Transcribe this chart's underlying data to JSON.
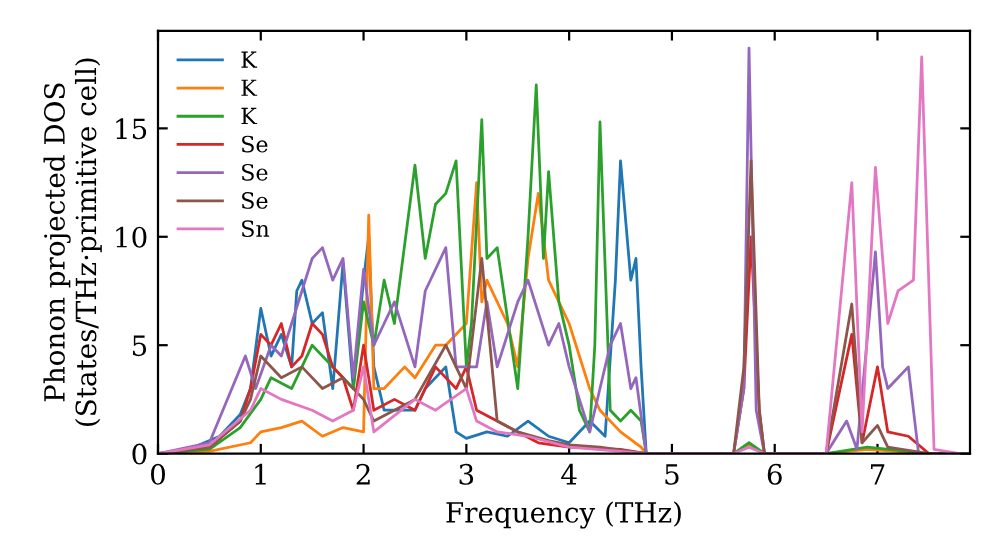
{
  "chart_data": {
    "type": "line",
    "xlabel": "Frequency (THz)",
    "ylabel": "Phonon projected DOS\n(States/THz·primitive cell)",
    "xlim": [
      0,
      7.9
    ],
    "ylim": [
      0,
      19.5
    ],
    "xticks": [
      0,
      1,
      2,
      3,
      4,
      5,
      6,
      7
    ],
    "yticks": [
      0,
      5,
      10,
      15
    ],
    "grid": false,
    "legend": "top left",
    "marker": "none",
    "line_style": "solid",
    "series": [
      {
        "name": "K",
        "color": "#1f77b4",
        "x": [
          0,
          0.3,
          0.6,
          0.8,
          0.9,
          1.0,
          1.1,
          1.2,
          1.3,
          1.35,
          1.4,
          1.5,
          1.6,
          1.7,
          1.8,
          1.9,
          2.0,
          2.05,
          2.1,
          2.2,
          2.3,
          2.5,
          2.6,
          2.8,
          2.9,
          3.0,
          3.2,
          3.4,
          3.6,
          3.8,
          4.0,
          4.2,
          4.35,
          4.45,
          4.5,
          4.6,
          4.65,
          4.7,
          4.75,
          5.6
        ],
        "values": [
          0,
          0.2,
          0.8,
          1.8,
          3,
          6.7,
          4.5,
          5.5,
          4,
          7.5,
          8,
          6,
          6.5,
          3,
          8.8,
          3,
          8,
          10,
          4,
          2,
          2,
          2,
          3,
          4,
          1,
          0.7,
          1,
          0.8,
          1.5,
          0.8,
          0.5,
          1.5,
          0.8,
          8,
          13.5,
          8,
          9,
          4,
          0,
          0
        ]
      },
      {
        "name": "K",
        "color": "#ff7f0e",
        "x": [
          0,
          0.5,
          0.9,
          1.0,
          1.2,
          1.4,
          1.6,
          1.8,
          2.0,
          2.05,
          2.1,
          2.2,
          2.4,
          2.5,
          2.7,
          2.8,
          3.0,
          3.1,
          3.15,
          3.2,
          3.4,
          3.5,
          3.6,
          3.7,
          3.8,
          3.9,
          4.0,
          4.2,
          4.3,
          4.5,
          4.7,
          4.75,
          5.6,
          5.75,
          5.9,
          6.5,
          6.9,
          7.5,
          7.8
        ],
        "values": [
          0,
          0.1,
          0.5,
          1,
          1.2,
          1.5,
          0.8,
          1.2,
          1,
          11,
          3,
          3,
          4,
          3.5,
          5,
          5,
          6,
          12.5,
          7,
          8,
          6,
          4,
          9,
          12,
          8,
          7,
          6,
          3,
          2,
          1,
          0.3,
          0,
          0,
          0.4,
          0,
          0,
          0.2,
          0,
          0
        ]
      },
      {
        "name": "K",
        "color": "#2ca02c",
        "x": [
          0,
          0.5,
          0.8,
          1.0,
          1.1,
          1.3,
          1.5,
          1.7,
          1.9,
          2.0,
          2.1,
          2.2,
          2.3,
          2.5,
          2.6,
          2.7,
          2.8,
          2.9,
          3.0,
          3.05,
          3.15,
          3.2,
          3.3,
          3.5,
          3.6,
          3.68,
          3.75,
          3.8,
          3.9,
          4.0,
          4.1,
          4.2,
          4.25,
          4.3,
          4.4,
          4.5,
          4.6,
          4.7,
          4.75,
          5.6,
          5.75,
          5.9,
          6.5,
          6.9,
          7.5,
          7.8
        ],
        "values": [
          0,
          0.2,
          1.2,
          2.5,
          3.5,
          3,
          5,
          4,
          3,
          7,
          5,
          8,
          6,
          13.3,
          9,
          11.5,
          12,
          13.5,
          4,
          6,
          15.4,
          9,
          9.5,
          3,
          10,
          17,
          9,
          13,
          7,
          5,
          2,
          1,
          5,
          15.3,
          2,
          1.5,
          2,
          1.5,
          0,
          0,
          0.5,
          0,
          0,
          0.3,
          0,
          0
        ]
      },
      {
        "name": "Se",
        "color": "#d62728",
        "x": [
          0,
          0.5,
          0.8,
          0.9,
          1.0,
          1.1,
          1.2,
          1.3,
          1.4,
          1.5,
          1.6,
          1.7,
          1.8,
          1.9,
          2.0,
          2.1,
          2.3,
          2.5,
          2.7,
          2.9,
          3.0,
          3.1,
          3.3,
          3.5,
          3.7,
          4.0,
          4.5,
          4.75,
          5.6,
          5.7,
          5.77,
          5.85,
          5.9,
          6.5,
          6.75,
          6.85,
          7.0,
          7.1,
          7.3,
          7.5,
          7.8
        ],
        "values": [
          0,
          0.3,
          1.5,
          3,
          5.5,
          5,
          6,
          4,
          4.5,
          6,
          5.5,
          4,
          3.5,
          2,
          5,
          2,
          2.5,
          2,
          4,
          3,
          4,
          2,
          1.5,
          1,
          0.5,
          0.3,
          0.2,
          0,
          0,
          3,
          10,
          2,
          0,
          0,
          5.5,
          0.5,
          4,
          1,
          0.8,
          0,
          0
        ]
      },
      {
        "name": "Se",
        "color": "#9467bd",
        "x": [
          0,
          0.5,
          0.85,
          0.95,
          1.1,
          1.2,
          1.5,
          1.6,
          1.7,
          1.8,
          1.9,
          2.0,
          2.1,
          2.2,
          2.3,
          2.5,
          2.6,
          2.8,
          2.9,
          3.1,
          3.2,
          3.3,
          3.5,
          3.6,
          3.8,
          3.9,
          4.0,
          4.2,
          4.3,
          4.4,
          4.5,
          4.6,
          4.65,
          4.75,
          5.6,
          5.7,
          5.75,
          5.82,
          5.9,
          6.5,
          6.7,
          6.8,
          6.98,
          7.05,
          7.1,
          7.2,
          7.3,
          7.4,
          7.8
        ],
        "values": [
          0,
          0.5,
          4.5,
          3,
          5,
          4.5,
          9,
          9.5,
          8,
          9,
          3.5,
          8.5,
          5,
          6,
          7,
          4,
          7.5,
          9.5,
          4,
          4,
          7,
          4,
          7,
          8,
          5,
          6,
          4,
          1,
          3,
          5,
          6,
          3,
          3.5,
          0,
          0,
          3,
          18.7,
          2,
          0,
          0,
          1.5,
          0.2,
          9.3,
          4,
          3,
          3.5,
          4,
          0,
          0
        ]
      },
      {
        "name": "Se",
        "color": "#8c564b",
        "x": [
          0,
          0.5,
          0.8,
          0.9,
          1.0,
          1.2,
          1.4,
          1.6,
          1.8,
          2.0,
          2.1,
          2.3,
          2.5,
          2.8,
          3.0,
          3.15,
          3.3,
          3.5,
          3.8,
          4.0,
          4.3,
          4.75,
          5.6,
          5.7,
          5.77,
          5.85,
          5.9,
          6.5,
          6.75,
          6.85,
          7.0,
          7.1,
          7.5,
          7.8
        ],
        "values": [
          0,
          0.3,
          1.5,
          2.5,
          4.5,
          3.5,
          4,
          3,
          3.5,
          2.5,
          1.5,
          2,
          2.5,
          5,
          3,
          9,
          1.5,
          1,
          0.6,
          0.4,
          0.3,
          0,
          0,
          4,
          13.5,
          2,
          0,
          0,
          6.9,
          0.5,
          1.3,
          0.3,
          0,
          0
        ]
      },
      {
        "name": "Sn",
        "color": "#e377c2",
        "x": [
          0,
          0.5,
          0.9,
          1.0,
          1.2,
          1.5,
          1.7,
          1.9,
          2.0,
          2.1,
          2.5,
          2.7,
          3.0,
          3.1,
          3.3,
          3.6,
          4.0,
          4.5,
          4.75,
          5.6,
          5.75,
          5.9,
          6.5,
          6.75,
          6.85,
          6.98,
          7.1,
          7.2,
          7.35,
          7.43,
          7.55,
          7.8
        ],
        "values": [
          0,
          0.4,
          2,
          3,
          2.5,
          2,
          1.5,
          2,
          4,
          1,
          2.5,
          2,
          3,
          1.5,
          1,
          0.8,
          0.3,
          0.1,
          0,
          0,
          0.3,
          0,
          0,
          12.5,
          1,
          13.2,
          6,
          7.5,
          8,
          18.3,
          0.2,
          0
        ]
      }
    ]
  }
}
